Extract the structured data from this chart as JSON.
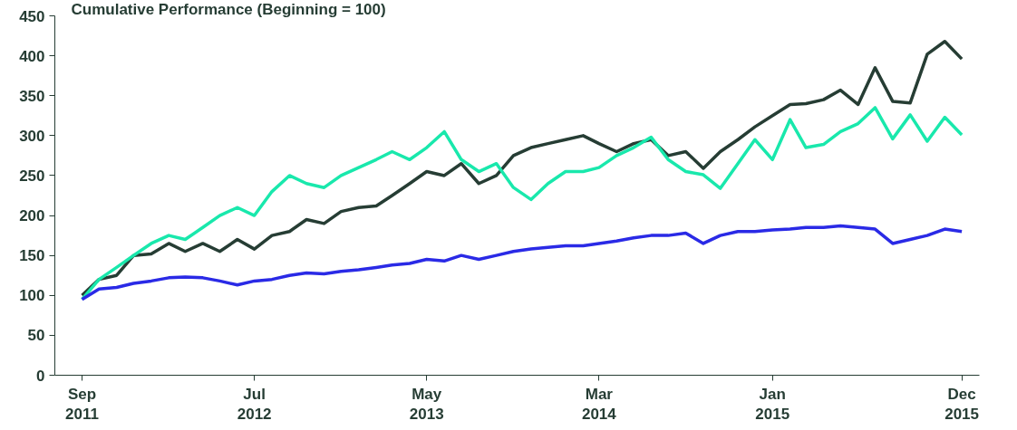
{
  "chart_data": {
    "type": "line",
    "title": "Cumulative Performance (Beginning = 100)",
    "x": [
      "2011-09-01",
      "2011-10-01",
      "2011-11-01",
      "2011-12-01",
      "2012-01-01",
      "2012-02-01",
      "2012-03-01",
      "2012-04-01",
      "2012-05-01",
      "2012-06-01",
      "2012-07-01",
      "2012-08-01",
      "2012-09-01",
      "2012-10-01",
      "2012-11-01",
      "2012-12-01",
      "2013-01-01",
      "2013-02-01",
      "2013-03-01",
      "2013-04-01",
      "2013-05-01",
      "2013-06-01",
      "2013-07-01",
      "2013-08-01",
      "2013-09-01",
      "2013-10-01",
      "2013-11-01",
      "2013-12-01",
      "2014-01-01",
      "2014-02-01",
      "2014-03-01",
      "2014-04-01",
      "2014-05-01",
      "2014-06-01",
      "2014-07-01",
      "2014-08-01",
      "2014-09-01",
      "2014-10-01",
      "2014-11-01",
      "2014-12-01",
      "2015-01-01",
      "2015-02-01",
      "2015-03-01",
      "2015-04-01",
      "2015-05-01",
      "2015-06-01",
      "2015-07-01",
      "2015-08-01",
      "2015-09-01",
      "2015-10-01",
      "2015-11-01",
      "2015-12-01"
    ],
    "series": [
      {
        "color": "#263d34",
        "values": [
          100,
          120,
          125,
          150,
          152,
          165,
          155,
          165,
          155,
          170,
          158,
          175,
          180,
          195,
          190,
          205,
          210,
          212,
          225,
          240,
          255,
          250,
          265,
          240,
          250,
          275,
          285,
          290,
          295,
          300,
          290,
          280,
          290,
          295,
          275,
          280,
          259,
          280,
          295,
          311,
          325,
          339,
          340,
          345,
          357,
          339,
          385,
          343,
          341,
          402,
          418,
          396
        ]
      },
      {
        "color": "#19e8ac",
        "values": [
          95,
          120,
          135,
          150,
          165,
          175,
          170,
          185,
          200,
          210,
          200,
          230,
          250,
          240,
          235,
          250,
          260,
          270,
          280,
          270,
          285,
          305,
          270,
          255,
          265,
          235,
          220,
          240,
          255,
          255,
          260,
          275,
          285,
          298,
          270,
          255,
          251,
          234,
          265,
          295,
          270,
          320,
          285,
          289,
          305,
          315,
          335,
          296,
          326,
          293,
          323,
          301
        ]
      },
      {
        "color": "#2a2ae6",
        "values": [
          95,
          108,
          110,
          115,
          118,
          122,
          123,
          122,
          118,
          113,
          118,
          120,
          125,
          128,
          127,
          130,
          132,
          135,
          138,
          140,
          145,
          143,
          150,
          145,
          150,
          155,
          158,
          160,
          162,
          162,
          165,
          168,
          172,
          175,
          175,
          178,
          165,
          175,
          180,
          180,
          182,
          183,
          185,
          185,
          187,
          185,
          183,
          165,
          170,
          175,
          183,
          180
        ]
      }
    ],
    "xlim": [
      "2011-07-15",
      "2016-01-01"
    ],
    "xticks": [
      {
        "value": "2011-09-01",
        "label": "Sep\n2011"
      },
      {
        "value": "2012-07-01",
        "label": "Jul\n2012"
      },
      {
        "value": "2013-05-01",
        "label": "May\n2013"
      },
      {
        "value": "2014-03-01",
        "label": "Mar\n2014"
      },
      {
        "value": "2015-01-01",
        "label": "Jan\n2015"
      },
      {
        "value": "2015-12-01",
        "label": "Dec\n2015"
      }
    ],
    "ylim": [
      0,
      450
    ],
    "yticks": [
      0,
      50,
      100,
      150,
      200,
      250,
      300,
      350,
      400,
      450
    ],
    "grid": false,
    "line_style": "solid"
  }
}
